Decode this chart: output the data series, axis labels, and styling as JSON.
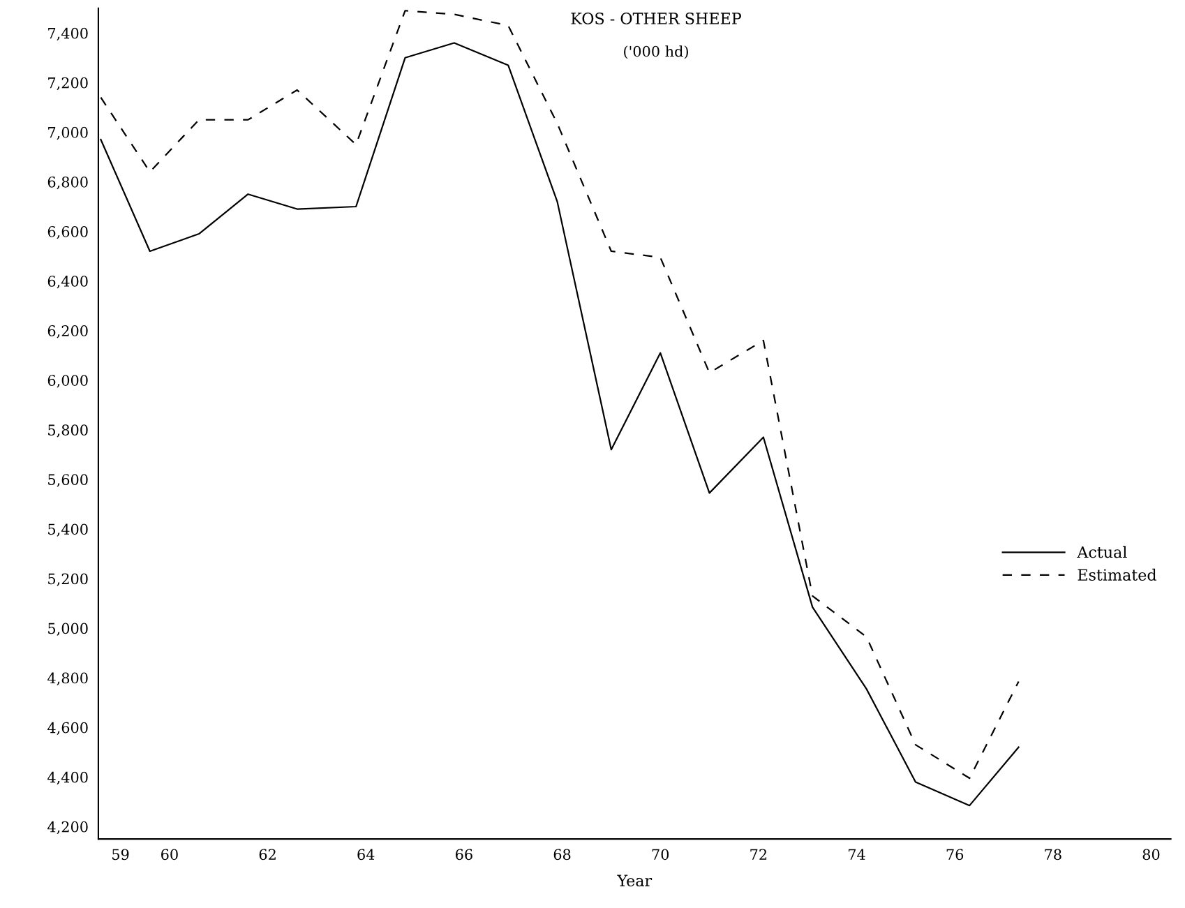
{
  "chart_data": {
    "type": "line",
    "title": "KOS - OTHER SHEEP",
    "subtitle": "('000 hd)",
    "xlabel": "Year",
    "xlim": [
      58.55,
      80.4
    ],
    "ylim": [
      4150,
      7500
    ],
    "xticks": [
      59,
      60,
      62,
      64,
      66,
      68,
      70,
      72,
      74,
      76,
      78,
      80
    ],
    "yticks": [
      {
        "value": 4200,
        "label": "4,200"
      },
      {
        "value": 4400,
        "label": "4,400"
      },
      {
        "value": 4600,
        "label": "4,600"
      },
      {
        "value": 4800,
        "label": "4,800"
      },
      {
        "value": 5000,
        "label": "5,000"
      },
      {
        "value": 5200,
        "label": "5,200"
      },
      {
        "value": 5400,
        "label": "5,400"
      },
      {
        "value": 5600,
        "label": "5,600"
      },
      {
        "value": 5800,
        "label": "5,800"
      },
      {
        "value": 6000,
        "label": "6,000"
      },
      {
        "value": 6200,
        "label": "6,200"
      },
      {
        "value": 6400,
        "label": "6,400"
      },
      {
        "value": 6600,
        "label": "6,600"
      },
      {
        "value": 6800,
        "label": "6,800"
      },
      {
        "value": 7000,
        "label": "7,000"
      },
      {
        "value": 7200,
        "label": "7,200"
      },
      {
        "value": 7400,
        "label": "7,400"
      }
    ],
    "x": [
      58.6,
      59.6,
      60.6,
      61.6,
      62.6,
      63.8,
      64.8,
      65.8,
      66.9,
      67.9,
      69.0,
      70.0,
      71.0,
      72.1,
      73.1,
      74.2,
      75.2,
      76.3,
      77.3
    ],
    "series": [
      {
        "name": "Actual",
        "color": "#000000",
        "line_style": "solid",
        "values": [
          6970,
          6520,
          6590,
          6750,
          6690,
          6700,
          7300,
          7360,
          7270,
          6720,
          5720,
          6110,
          5545,
          5770,
          5085,
          4755,
          4380,
          4285,
          4520
        ]
      },
      {
        "name": "Estimated",
        "color": "#000000",
        "line_style": "dashed",
        "values": [
          7140,
          6840,
          7050,
          7050,
          7170,
          6950,
          7490,
          7475,
          7430,
          7035,
          6520,
          6495,
          6030,
          6160,
          5130,
          4965,
          4530,
          4395,
          4785
        ]
      }
    ],
    "legend": "center right",
    "grid": false,
    "marker": "none"
  }
}
